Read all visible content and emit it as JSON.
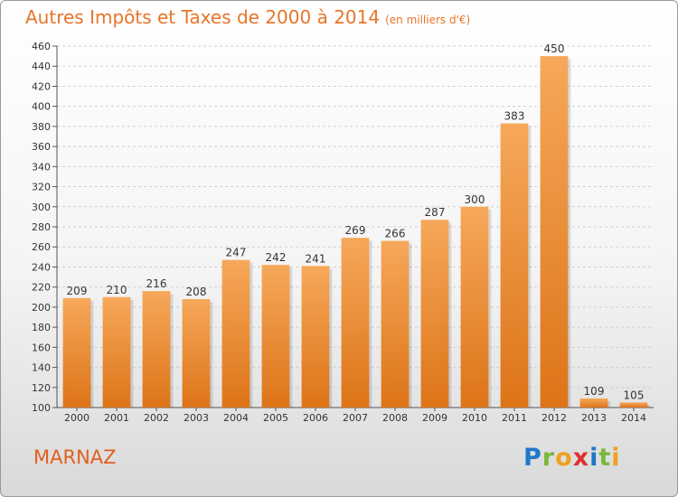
{
  "title": "Autres Impôts et Taxes de 2000 à 2014",
  "unit": "(en milliers d'€)",
  "town": "MARNAZ",
  "logo": {
    "text": "Proxiti",
    "letters": [
      "P",
      "r",
      "o",
      "x",
      "i",
      "t",
      "i"
    ],
    "colors": [
      "#1f78c8",
      "#7ab83c",
      "#f0a020",
      "#e03030",
      "#1f78c8",
      "#7ab83c",
      "#f0a020"
    ]
  },
  "colors": {
    "bar_top": "#f6a85a",
    "bar_bottom": "#dd7418",
    "title": "#e8742a",
    "grid": "#cfcfcf"
  },
  "chart_data": {
    "type": "bar",
    "title": "Autres Impôts et Taxes de 2000 à 2014",
    "ylabel": "(en milliers d'€)",
    "categories": [
      "2000",
      "2001",
      "2002",
      "2003",
      "2004",
      "2005",
      "2006",
      "2007",
      "2008",
      "2009",
      "2010",
      "2011",
      "2012",
      "2013",
      "2014"
    ],
    "values": [
      209,
      210,
      216,
      208,
      247,
      242,
      241,
      269,
      266,
      287,
      300,
      383,
      450,
      109,
      105
    ],
    "ylim": [
      100,
      460
    ],
    "ytick_step": 20,
    "grid": true
  }
}
